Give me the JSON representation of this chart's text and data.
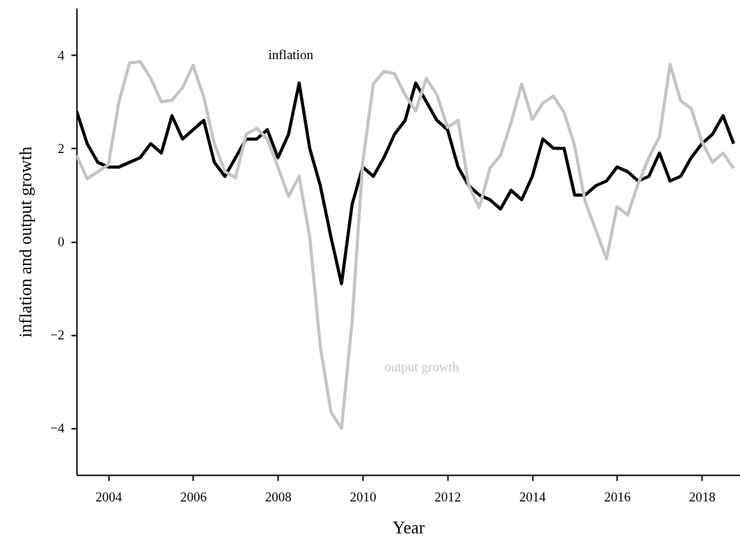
{
  "chart_data": {
    "type": "line",
    "xlabel": "Year",
    "ylabel": "inflation and output growth",
    "x": [
      2003.25,
      2003.5,
      2003.75,
      2004.0,
      2004.25,
      2004.5,
      2004.75,
      2005.0,
      2005.25,
      2005.5,
      2005.75,
      2006.0,
      2006.25,
      2006.5,
      2006.75,
      2007.0,
      2007.25,
      2007.5,
      2007.75,
      2008.0,
      2008.25,
      2008.5,
      2008.75,
      2009.0,
      2009.25,
      2009.5,
      2009.75,
      2010.0,
      2010.25,
      2010.5,
      2010.75,
      2011.0,
      2011.25,
      2011.5,
      2011.75,
      2012.0,
      2012.25,
      2012.5,
      2012.75,
      2013.0,
      2013.25,
      2013.5,
      2013.75,
      2014.0,
      2014.25,
      2014.5,
      2014.75,
      2015.0,
      2015.25,
      2015.5,
      2015.75,
      2016.0,
      2016.25,
      2016.5,
      2016.75,
      2017.0,
      2017.25,
      2017.5,
      2017.75,
      2018.0,
      2018.25,
      2018.5,
      2018.75
    ],
    "series": [
      {
        "name": "inflation",
        "color": "#000000",
        "values": [
          2.8,
          2.1,
          1.7,
          1.6,
          1.6,
          1.7,
          1.8,
          2.1,
          1.9,
          2.7,
          2.2,
          2.4,
          2.6,
          1.7,
          1.4,
          1.8,
          2.2,
          2.2,
          2.4,
          1.8,
          2.3,
          3.4,
          2.0,
          1.2,
          0.1,
          -0.9,
          0.8,
          1.6,
          1.4,
          1.8,
          2.3,
          2.6,
          3.4,
          3.0,
          2.6,
          2.4,
          1.6,
          1.2,
          1.0,
          0.9,
          0.7,
          1.1,
          0.9,
          1.4,
          2.2,
          2.0,
          2.0,
          1.0,
          1.0,
          1.2,
          1.3,
          1.6,
          1.5,
          1.3,
          1.4,
          1.9,
          1.3,
          1.4,
          1.8,
          2.1,
          2.3,
          2.7,
          2.1
        ]
      },
      {
        "name": "output growth",
        "color": "#c4c4c4",
        "values": [
          1.85,
          1.35,
          1.5,
          1.65,
          3.0,
          3.83,
          3.86,
          3.5,
          3.0,
          3.03,
          3.3,
          3.78,
          3.1,
          2.1,
          1.5,
          1.37,
          2.3,
          2.43,
          2.2,
          1.6,
          0.97,
          1.4,
          0.1,
          -2.25,
          -3.65,
          -4.0,
          -1.7,
          1.7,
          3.38,
          3.65,
          3.6,
          3.15,
          2.8,
          3.5,
          3.15,
          2.45,
          2.6,
          1.2,
          0.73,
          1.57,
          1.85,
          2.55,
          3.38,
          2.62,
          2.97,
          3.12,
          2.77,
          2.05,
          0.85,
          0.25,
          -0.37,
          0.75,
          0.57,
          1.25,
          1.8,
          2.25,
          3.8,
          3.02,
          2.85,
          2.15,
          1.7,
          1.9,
          1.57
        ]
      }
    ],
    "xlim": [
      2003.25,
      2018.9
    ],
    "xticks": [
      2004,
      2006,
      2008,
      2010,
      2012,
      2014,
      2016,
      2018
    ],
    "ylim": [
      -5,
      5
    ],
    "yticks": [
      -4,
      -2,
      0,
      2,
      4
    ],
    "grid": false,
    "marker": "none",
    "line_style": "solid"
  }
}
